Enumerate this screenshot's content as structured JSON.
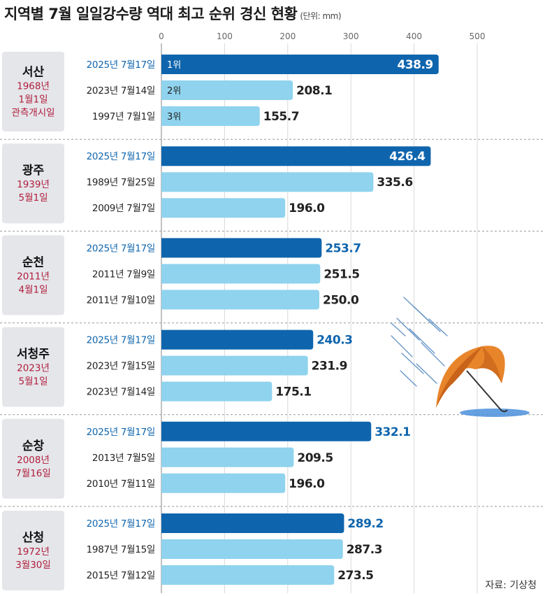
{
  "title": "지역별 7월 일일강수량 역대 최고 순위 경신 현황",
  "unit": "(단위: mm)",
  "source": "자료: 기상청",
  "colors": {
    "highlight": "#0f65ad",
    "bar": "#8fd3ee",
    "since": "#b01e3c",
    "date_highlight": "#0f65ad",
    "region_box": "#e5e6ea"
  },
  "icons": [
    "umbrella-icon",
    "rain-icon"
  ],
  "chart_data": {
    "type": "bar",
    "orientation": "horizontal",
    "xlim": [
      0,
      500
    ],
    "ticks": [
      0,
      100,
      200,
      300,
      400,
      500
    ],
    "grid": true,
    "rank_labels": [
      "1위",
      "2위",
      "3위"
    ],
    "groups": [
      {
        "region": "서산",
        "since": [
          "1968년",
          "1월1일",
          "관측개시일"
        ],
        "bars": [
          {
            "date": "2025년 7월17일",
            "value": 438.9,
            "value_label": "438.9",
            "highlight": true
          },
          {
            "date": "2023년 7월14일",
            "value": 208.1,
            "value_label": "208.1"
          },
          {
            "date": "1997년 7월1일",
            "value": 155.7,
            "value_label": "155.7"
          }
        ]
      },
      {
        "region": "광주",
        "since": [
          "1939년",
          "5월1일"
        ],
        "bars": [
          {
            "date": "2025년 7월17일",
            "value": 426.4,
            "value_label": "426.4",
            "highlight": true
          },
          {
            "date": "1989년 7월25일",
            "value": 335.6,
            "value_label": "335.6"
          },
          {
            "date": "2009년 7월7일",
            "value": 196.0,
            "value_label": "196.0"
          }
        ]
      },
      {
        "region": "순천",
        "since": [
          "2011년",
          "4월1일"
        ],
        "bars": [
          {
            "date": "2025년 7월17일",
            "value": 253.7,
            "value_label": "253.7",
            "highlight": true
          },
          {
            "date": "2011년 7월9일",
            "value": 251.5,
            "value_label": "251.5"
          },
          {
            "date": "2011년 7월10일",
            "value": 250.0,
            "value_label": "250.0"
          }
        ]
      },
      {
        "region": "서청주",
        "since": [
          "2023년",
          "5월1일"
        ],
        "bars": [
          {
            "date": "2025년 7월17일",
            "value": 240.3,
            "value_label": "240.3",
            "highlight": true
          },
          {
            "date": "2023년 7월15일",
            "value": 231.9,
            "value_label": "231.9"
          },
          {
            "date": "2023년 7월14일",
            "value": 175.1,
            "value_label": "175.1"
          }
        ]
      },
      {
        "region": "순창",
        "since": [
          "2008년",
          "7월16일"
        ],
        "bars": [
          {
            "date": "2025년 7월17일",
            "value": 332.1,
            "value_label": "332.1",
            "highlight": true
          },
          {
            "date": "2013년 7월5일",
            "value": 209.5,
            "value_label": "209.5"
          },
          {
            "date": "2010년 7월11일",
            "value": 196.0,
            "value_label": "196.0"
          }
        ]
      },
      {
        "region": "산청",
        "since": [
          "1972년",
          "3월30일"
        ],
        "bars": [
          {
            "date": "2025년 7월17일",
            "value": 289.2,
            "value_label": "289.2",
            "highlight": true
          },
          {
            "date": "1987년 7월15일",
            "value": 287.3,
            "value_label": "287.3"
          },
          {
            "date": "2015년 7월12일",
            "value": 273.5,
            "value_label": "273.5"
          }
        ]
      }
    ]
  }
}
